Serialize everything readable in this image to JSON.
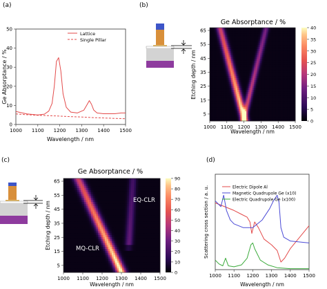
{
  "colors": {
    "lattice": "#e34a4a",
    "single_pillar": "#e34a4a",
    "dipole": "#e34a4a",
    "mag_quad": "#4a4ad6",
    "elec_quad": "#3aaa3a",
    "gray_block": "#d3d3d3",
    "purple_block": "#8e3b9e",
    "orange_block": "#d88f3a",
    "blue_cap": "#3d55c8"
  },
  "chart_data": [
    {
      "panel_label": "(a)",
      "type": "line",
      "title": "",
      "xlabel": "Wavelength / nm",
      "ylabel": "Ge Absorptance / %",
      "xlim": [
        1000,
        1500
      ],
      "ylim": [
        0,
        50
      ],
      "xticks": [
        "1000",
        "1100",
        "1200",
        "1300",
        "1400",
        "1500"
      ],
      "yticks": [
        "0",
        "10",
        "20",
        "30",
        "40",
        "50"
      ],
      "legend": "top-right",
      "series": [
        {
          "name": "Lattice",
          "style": "solid",
          "x": [
            1000,
            1050,
            1100,
            1130,
            1150,
            1165,
            1175,
            1185,
            1195,
            1205,
            1215,
            1230,
            1250,
            1280,
            1310,
            1325,
            1335,
            1345,
            1355,
            1370,
            1400,
            1450,
            1480,
            1500
          ],
          "y": [
            6.8,
            5.5,
            5.0,
            5.4,
            7.0,
            11,
            20,
            33,
            35,
            28,
            16,
            9,
            6.5,
            6.0,
            7.5,
            10.5,
            12.5,
            10.5,
            7.5,
            6.0,
            5.6,
            5.6,
            6.0,
            6.0
          ]
        },
        {
          "name": "Single Pillar",
          "style": "dashed",
          "x": [
            1000,
            1050,
            1100,
            1150,
            1200,
            1250,
            1300,
            1350,
            1400,
            1450,
            1500
          ],
          "y": [
            5.5,
            5.1,
            4.8,
            4.6,
            4.4,
            4.1,
            3.9,
            3.6,
            3.4,
            3.2,
            3.0
          ]
        }
      ]
    },
    {
      "panel_label": "(b)",
      "type": "heatmap",
      "title": "Ge Absorptance / %",
      "xlabel": "Wavelength / nm",
      "ylabel": "Etching depth / nm",
      "xlim": [
        1000,
        1500
      ],
      "ylim": [
        0,
        67
      ],
      "xticks": [
        "1000",
        "1100",
        "1200",
        "1300",
        "1400",
        "1500"
      ],
      "yticks": [
        "5",
        "15",
        "25",
        "35",
        "45",
        "55",
        "65"
      ],
      "colorbar_ticks": [
        "0",
        "5",
        "10",
        "15",
        "20",
        "25",
        "30",
        "35",
        "40"
      ],
      "value_range": [
        0,
        40
      ],
      "resonances": [
        {
          "depth": [
            0,
            67
          ],
          "wl": [
            1205,
            1060
          ],
          "width": 20,
          "peak": 40
        },
        {
          "depth": [
            0,
            67
          ],
          "wl": [
            1195,
            1330
          ],
          "width": 16,
          "peak": 24
        }
      ]
    },
    {
      "panel_label": "(c)",
      "type": "heatmap",
      "title": "Ge Absorptance / %",
      "xlabel": "Wavelength / nm",
      "ylabel": "Etching depth / nm",
      "xlim": [
        1000,
        1500
      ],
      "ylim": [
        0,
        67
      ],
      "xticks": [
        "1000",
        "1100",
        "1200",
        "1300",
        "1400",
        "1500"
      ],
      "yticks": [
        "5",
        "15",
        "25",
        "35",
        "45",
        "55",
        "65"
      ],
      "colorbar_ticks": [
        "0",
        "10",
        "20",
        "30",
        "40",
        "50",
        "60",
        "70",
        "80",
        "90"
      ],
      "value_range": [
        0,
        90
      ],
      "annotations": [
        "EQ-CLR",
        "MQ-CLR"
      ],
      "resonances": [
        {
          "depth": [
            0,
            67
          ],
          "wl": [
            1300,
            1075
          ],
          "width": 24,
          "peak": 92
        },
        {
          "depth": [
            20,
            67
          ],
          "wl": [
            1330,
            1360
          ],
          "width": 18,
          "peak": 30
        }
      ]
    },
    {
      "panel_label": "(d)",
      "type": "line",
      "title": "",
      "xlabel": "Wavelength / nm",
      "ylabel": "Scattering cross section / a. u.",
      "xlim": [
        1000,
        1500
      ],
      "ylim": [
        0,
        1
      ],
      "xticks": [
        "1000",
        "1100",
        "1200",
        "1300",
        "1400",
        "1500"
      ],
      "legend": "top-left",
      "series": [
        {
          "name": "Electric Dipole Al",
          "x": [
            1000,
            1050,
            1100,
            1140,
            1170,
            1185,
            1195,
            1200,
            1210,
            1230,
            1260,
            1300,
            1330,
            1350,
            1370,
            1400,
            1450,
            1500
          ],
          "y": [
            0.7,
            0.66,
            0.62,
            0.58,
            0.55,
            0.5,
            0.38,
            0.42,
            0.5,
            0.44,
            0.32,
            0.26,
            0.2,
            0.08,
            0.12,
            0.22,
            0.34,
            0.46
          ]
        },
        {
          "name": "Magnetic Quadrupole Ge (x10)",
          "x": [
            1000,
            1030,
            1045,
            1060,
            1080,
            1100,
            1150,
            1200,
            1250,
            1290,
            1310,
            1330,
            1340,
            1350,
            1365,
            1400,
            1450,
            1500
          ],
          "y": [
            0.72,
            0.66,
            0.78,
            0.62,
            0.52,
            0.48,
            0.44,
            0.44,
            0.52,
            0.64,
            0.72,
            0.78,
            0.7,
            0.44,
            0.34,
            0.3,
            0.29,
            0.28
          ]
        },
        {
          "name": "Electric Quadrupole Ge (x100)",
          "x": [
            1000,
            1020,
            1040,
            1055,
            1070,
            1100,
            1140,
            1170,
            1190,
            1200,
            1210,
            1240,
            1280,
            1330,
            1400,
            1500
          ],
          "y": [
            0.1,
            0.06,
            0.04,
            0.12,
            0.04,
            0.03,
            0.05,
            0.12,
            0.26,
            0.28,
            0.22,
            0.1,
            0.05,
            0.02,
            0.01,
            0.01
          ]
        }
      ]
    }
  ]
}
